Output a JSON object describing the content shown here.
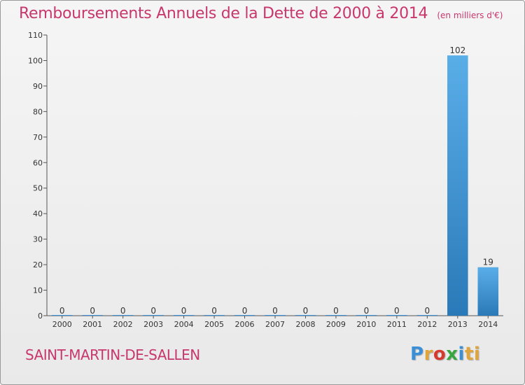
{
  "chart_data": {
    "type": "bar",
    "title": "Remboursements Annuels de la Dette de 2000 à 2014",
    "subtitle": "(en milliers d'€)",
    "categories": [
      "2000",
      "2001",
      "2002",
      "2003",
      "2004",
      "2005",
      "2006",
      "2007",
      "2008",
      "2009",
      "2010",
      "2011",
      "2012",
      "2013",
      "2014"
    ],
    "values": [
      0,
      0,
      0,
      0,
      0,
      0,
      0,
      0,
      0,
      0,
      0,
      0,
      0,
      102,
      19
    ],
    "yticks": [
      0,
      10,
      20,
      30,
      40,
      50,
      60,
      70,
      80,
      90,
      100,
      110
    ],
    "ylim": [
      0,
      110
    ],
    "xlabel": "",
    "ylabel": "",
    "bar_color": "#3a8fd6"
  },
  "commune": "SAINT-MARTIN-DE-SALLEN",
  "logo": {
    "letters": [
      "P",
      "r",
      "o",
      "x",
      "i",
      "ti"
    ],
    "alt": "Proxiti"
  }
}
